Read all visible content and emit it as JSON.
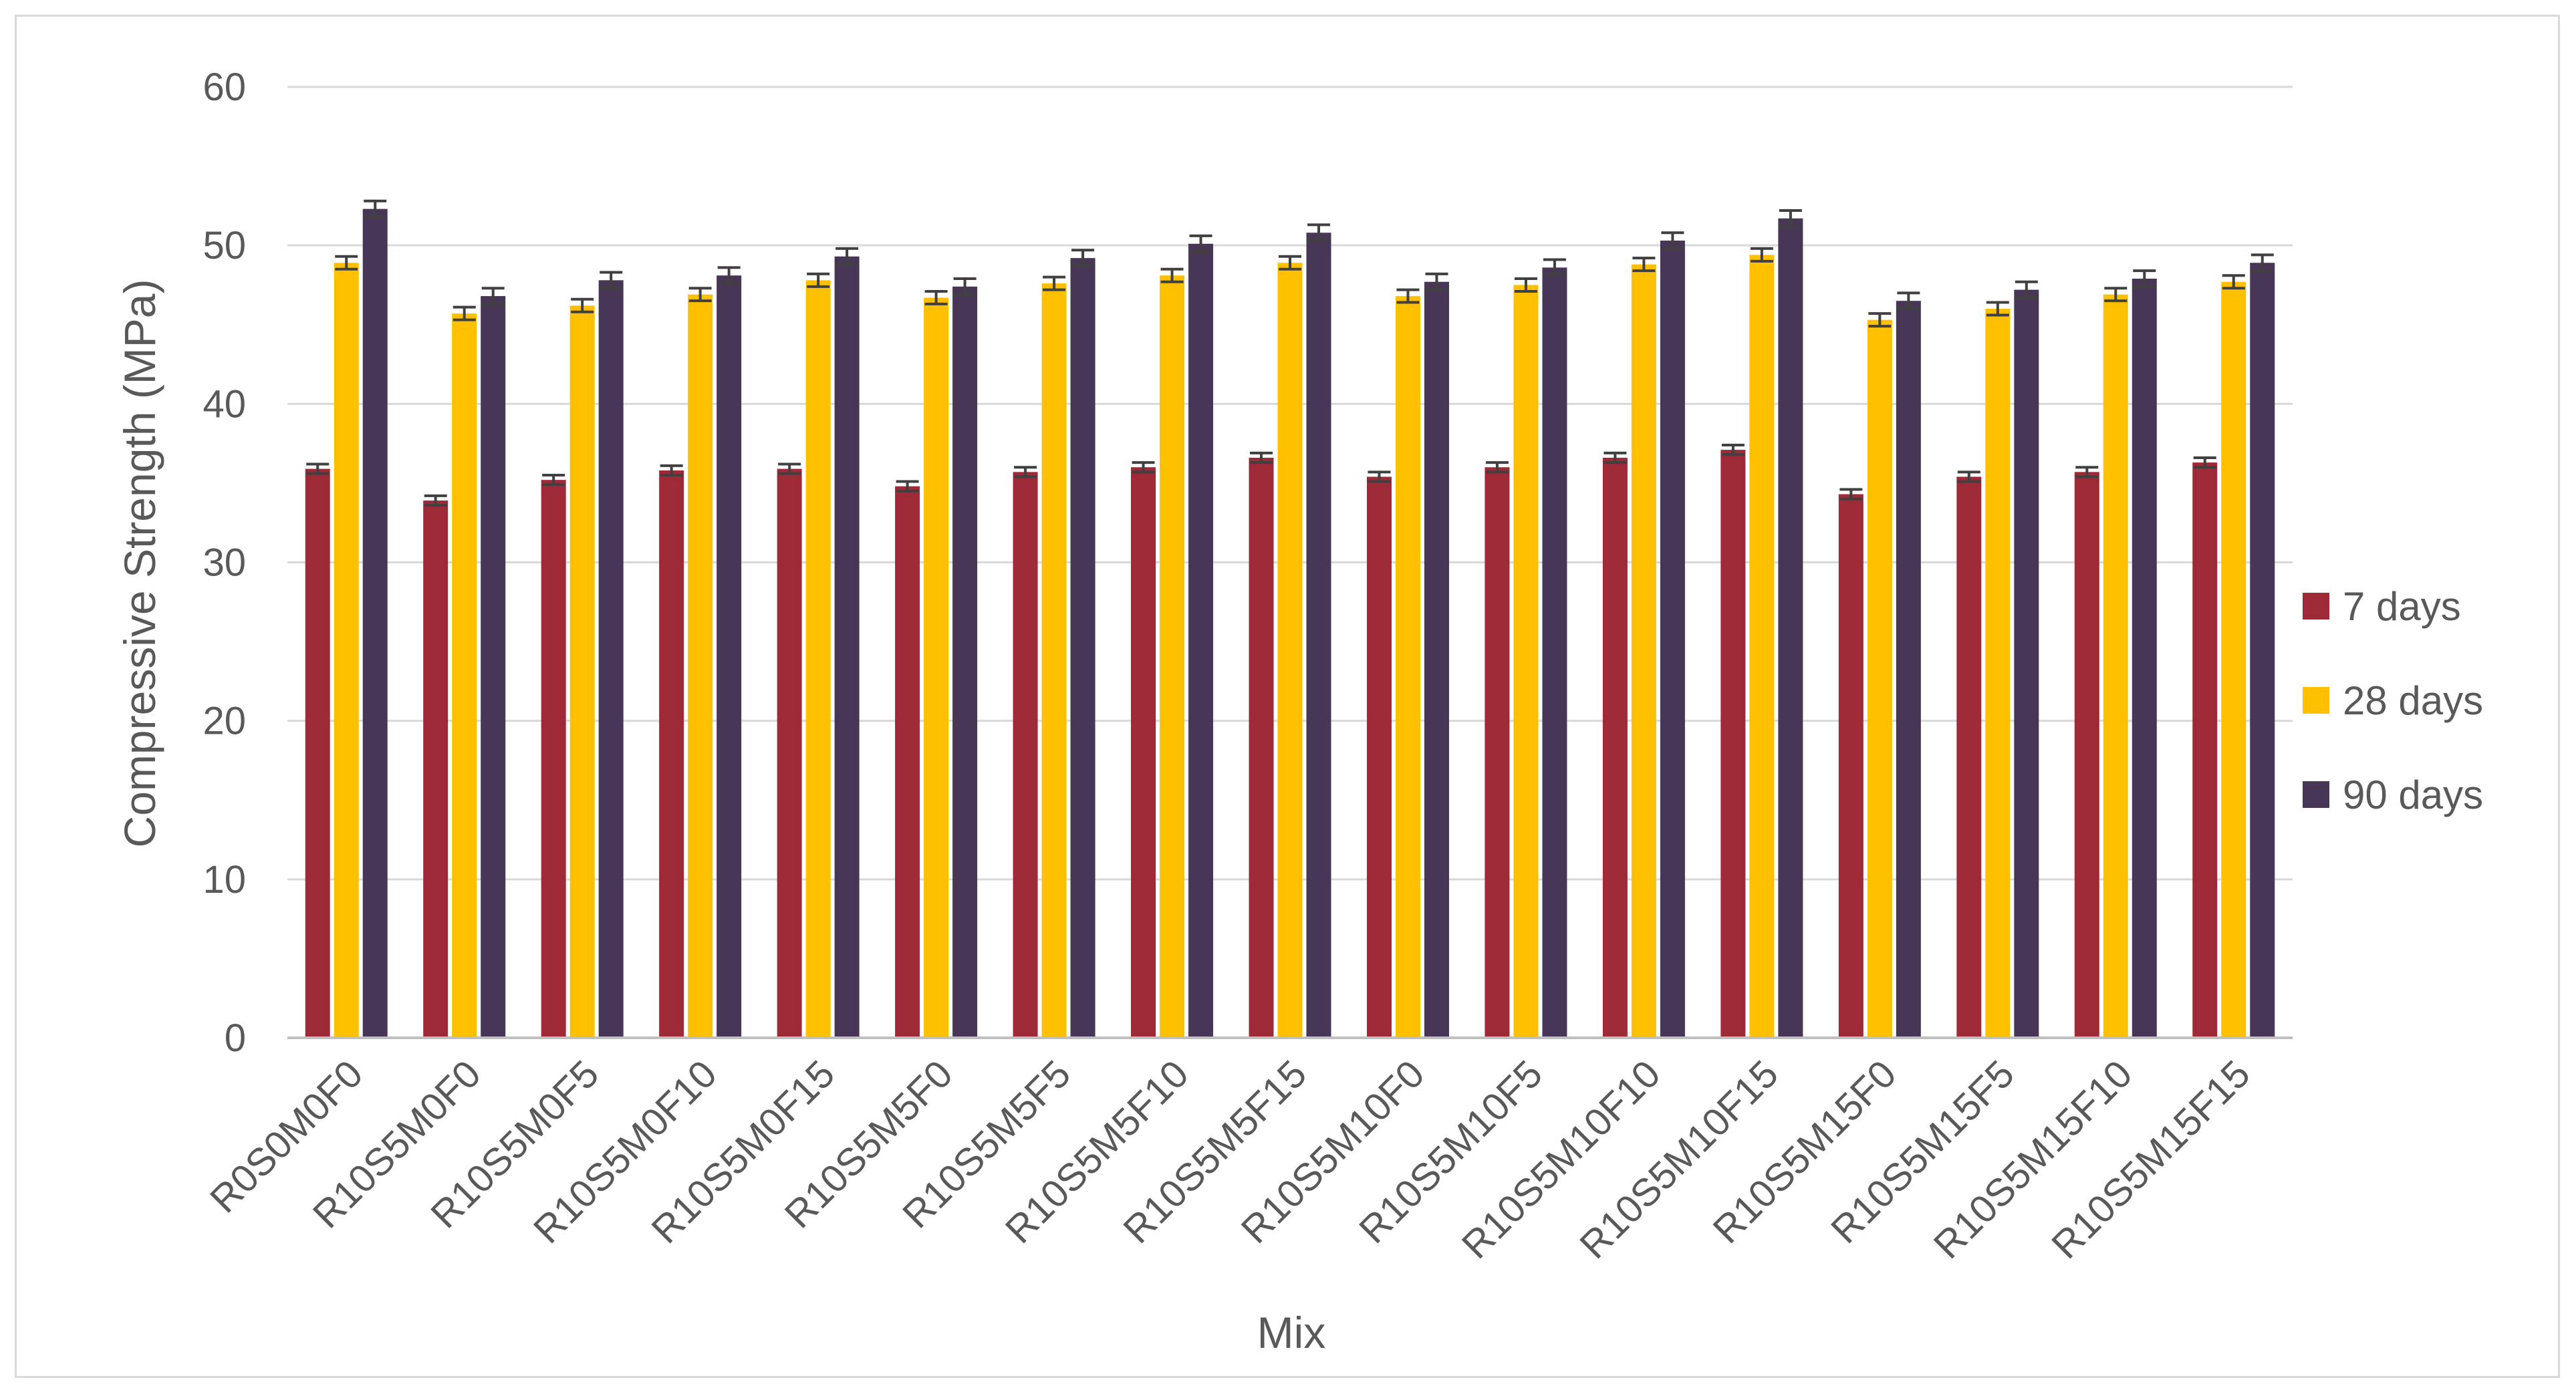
{
  "chart_data": {
    "type": "bar",
    "title": "",
    "xlabel": "Mix",
    "ylabel": "Compressive Strength (MPa)",
    "ylim": [
      0,
      60
    ],
    "yticks": [
      0,
      10,
      20,
      30,
      40,
      50,
      60
    ],
    "grid": true,
    "legend_position": "right",
    "error_bars": true,
    "categories": [
      "R0S0M0F0",
      "R10S5M0F0",
      "R10S5M0F5",
      "R10S5M0F10",
      "R10S5M0F15",
      "R10S5M5F0",
      "R10S5M5F5",
      "R10S5M5F10",
      "R10S5M5F15",
      "R10S5M10F0",
      "R10S5M10F5",
      "R10S5M10F10",
      "R10S5M10F15",
      "R10S5M15F0",
      "R10S5M15F5",
      "R10S5M15F10",
      "R10S5M15F15"
    ],
    "series": [
      {
        "name": "7 days",
        "color": "#9e2a38",
        "values": [
          35.9,
          33.9,
          35.2,
          35.8,
          35.9,
          34.8,
          35.7,
          36.0,
          36.6,
          35.4,
          36.0,
          36.6,
          37.1,
          34.3,
          35.4,
          35.7,
          36.3
        ],
        "errors": [
          0.3,
          0.3,
          0.3,
          0.3,
          0.3,
          0.3,
          0.3,
          0.3,
          0.3,
          0.3,
          0.3,
          0.3,
          0.3,
          0.3,
          0.3,
          0.3,
          0.3
        ]
      },
      {
        "name": "28 days",
        "color": "#ffc000",
        "values": [
          48.9,
          45.7,
          46.2,
          46.9,
          47.8,
          46.7,
          47.6,
          48.1,
          48.9,
          46.8,
          47.5,
          48.8,
          49.4,
          45.3,
          46.0,
          46.9,
          47.7
        ],
        "errors": [
          0.4,
          0.4,
          0.4,
          0.4,
          0.4,
          0.4,
          0.4,
          0.4,
          0.4,
          0.4,
          0.4,
          0.4,
          0.4,
          0.4,
          0.4,
          0.4,
          0.4
        ]
      },
      {
        "name": "90 days",
        "color": "#483656",
        "values": [
          52.3,
          46.8,
          47.8,
          48.1,
          49.3,
          47.4,
          49.2,
          50.1,
          50.8,
          47.7,
          48.6,
          50.3,
          51.7,
          46.5,
          47.2,
          47.9,
          48.9
        ],
        "errors": [
          0.5,
          0.5,
          0.5,
          0.5,
          0.5,
          0.5,
          0.5,
          0.5,
          0.5,
          0.5,
          0.5,
          0.5,
          0.5,
          0.5,
          0.5,
          0.5,
          0.5
        ]
      }
    ]
  }
}
